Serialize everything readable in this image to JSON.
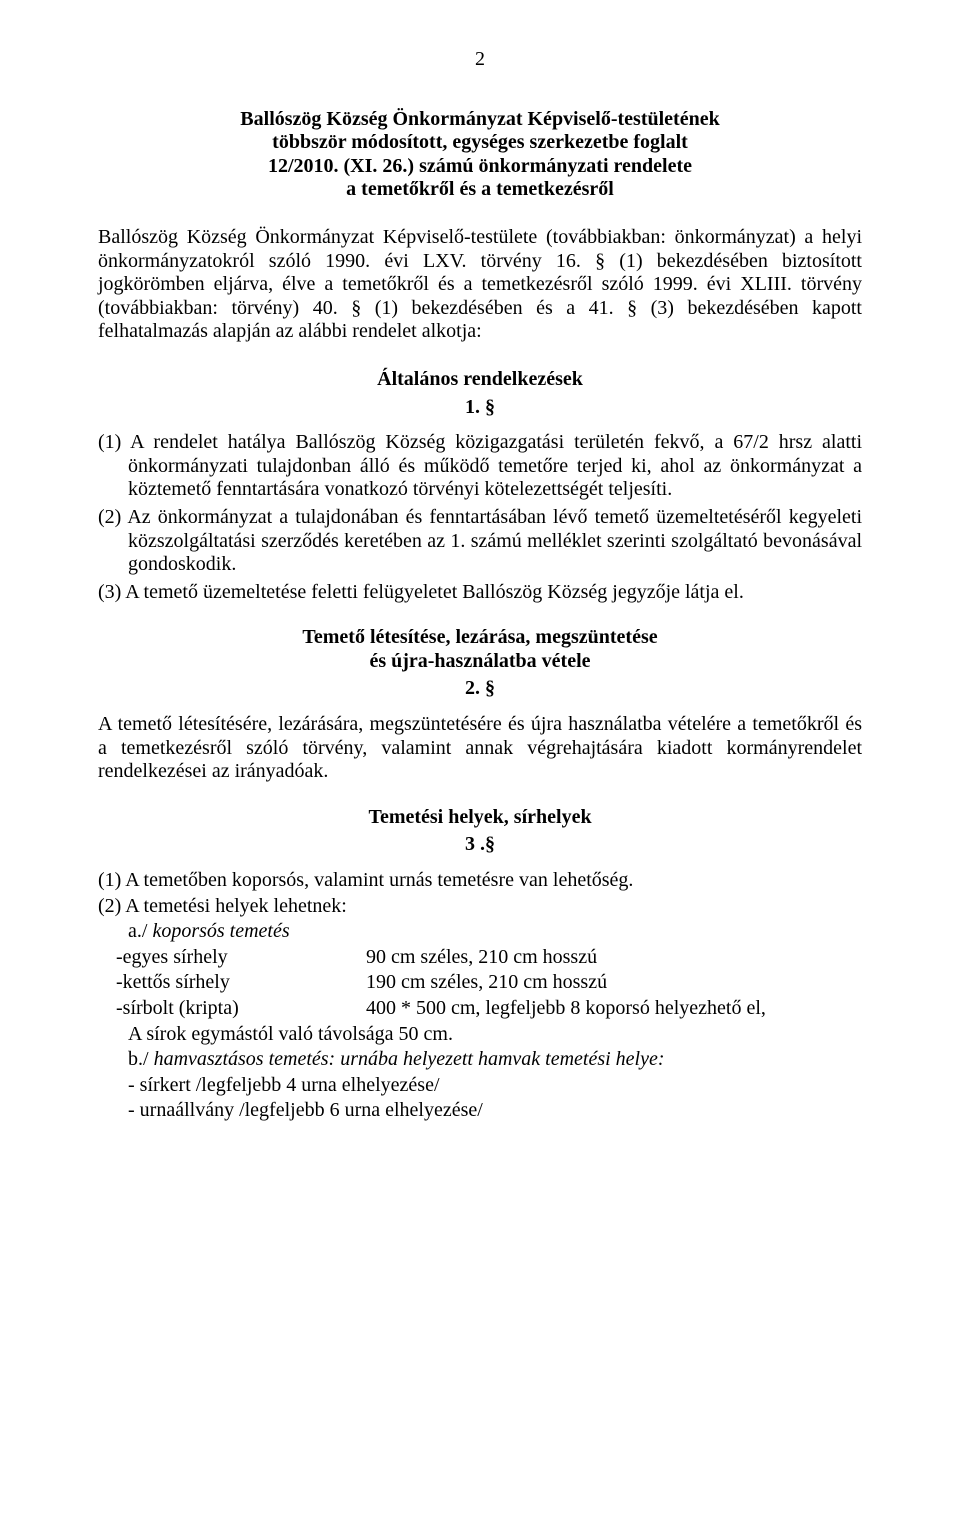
{
  "page_number": "2",
  "header": {
    "line1": "Ballószög Község Önkormányzat Képviselő-testületének",
    "line2": "többször módosított, egységes szerkezetbe foglalt",
    "line3": "12/2010. (XI. 26.) számú önkormányzati rendelete",
    "line4": "a temetőkről és a temetkezésről"
  },
  "preamble": "Ballószög Község Önkormányzat Képviselő-testülete (továbbiakban: önkormányzat) a helyi önkormányzatokról szóló 1990. évi LXV. törvény 16. § (1) bekezdésében biztosított jogkörömben eljárva, élve a temetőkről és a temetkezésről szóló 1999. évi XLIII. törvény (továbbiakban: törvény) 40. § (1) bekezdésében és a 41. § (3) bekezdésében kapott felhatalmazás alapján az alábbi rendelet alkotja:",
  "section1": {
    "title": "Általános rendelkezések",
    "num": "1. §",
    "p1": "(1) A rendelet hatálya Ballószög Község közigazgatási területén fekvő, a 67/2 hrsz alatti önkormányzati tulajdonban álló és működő temetőre terjed ki, ahol az önkormányzat a köztemető fenntartására vonatkozó törvényi kötelezettségét teljesíti.",
    "p2": "(2) Az önkormányzat a tulajdonában és fenntartásában lévő temető üzemeltetéséről kegyeleti közszolgáltatási szerződés keretében az 1. számú melléklet szerinti szolgáltató bevonásával gondoskodik.",
    "p3": "(3) A temető üzemeltetése feletti felügyeletet Ballószög Község jegyzője látja el."
  },
  "section2": {
    "title1": "Temető létesítése, lezárása, megszüntetése",
    "title2": "és újra-használatba vétele",
    "num": "2. §",
    "body": "A temető létesítésére, lezárására, megszüntetésére és újra használatba vételére a temetőkről és a temetkezésről szóló törvény, valamint annak végrehajtására kiadott kormányrendelet rendelkezései az irányadóak."
  },
  "section3": {
    "title": "Temetési helyek, sírhelyek",
    "num": "3 .§",
    "p1": "(1)  A temetőben koporsós, valamint urnás temetésre van lehetőség.",
    "p2": "(2)  A temetési helyek lehetnek:",
    "a_label": "a./",
    "a_text": "koporsós temetés",
    "measure1_label": "-egyes sírhely",
    "measure1_val": "90 cm széles, 210 cm hosszú",
    "measure2_label": "-kettős sírhely",
    "measure2_val": "190 cm széles, 210 cm hosszú",
    "measure3_label": "-sírbolt (kripta)",
    "measure3_val": "400 * 500 cm, legfeljebb 8 koporsó helyezhető el,",
    "a_tail": "A sírok egymástól való távolsága 50 cm.",
    "b_label": "b./",
    "b_text": "hamvasztásos temetés: urnába helyezett hamvak temetési helye:",
    "b_line1": "- sírkert  /legfeljebb 4 urna elhelyezése/",
    "b_line2": "- urnaállvány /legfeljebb 6 urna elhelyezése/"
  }
}
